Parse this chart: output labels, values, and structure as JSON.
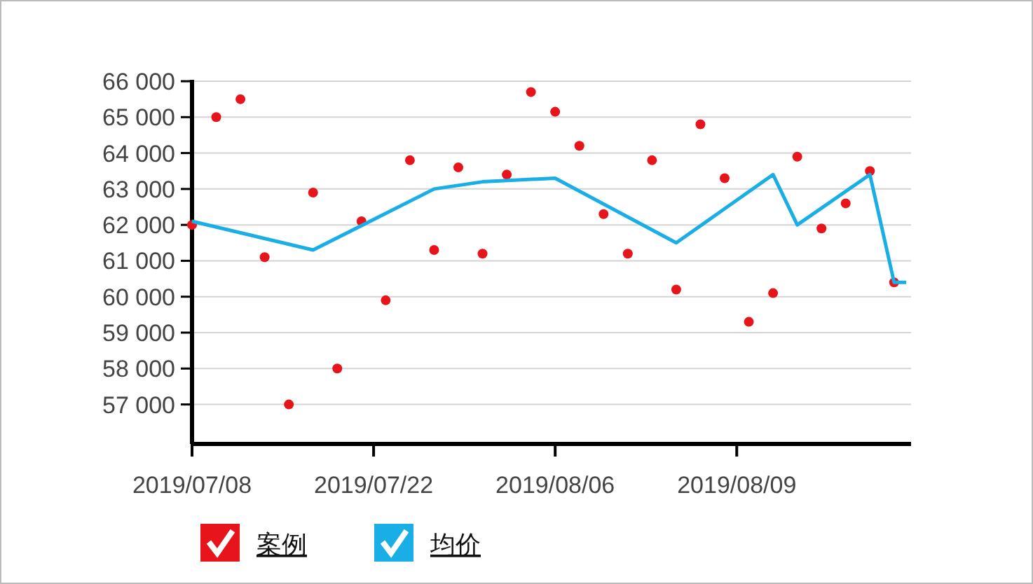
{
  "chart_data": {
    "type": "line",
    "categories": [
      "2019/07/08",
      null,
      null,
      null,
      null,
      null,
      null,
      null,
      null,
      null,
      null,
      null,
      null,
      null,
      null,
      "2019/07/22",
      null,
      null,
      null,
      null,
      null,
      null,
      null,
      null,
      null,
      null,
      null,
      null,
      null,
      null,
      "2019/08/06",
      null,
      null,
      null,
      null,
      null,
      null,
      null,
      null,
      null,
      null,
      null,
      null,
      null,
      null,
      "2019/08/09",
      null,
      null,
      null,
      null,
      null,
      null,
      null,
      null,
      null,
      null,
      null,
      null,
      null,
      null
    ],
    "series": [
      {
        "name": "案例",
        "type": "scatter",
        "marker": "circle",
        "color": "#e8141c",
        "values": [
          62000,
          null,
          65000,
          null,
          65500,
          null,
          61100,
          null,
          57000,
          null,
          62900,
          null,
          58000,
          null,
          62100,
          null,
          59900,
          null,
          63800,
          null,
          61300,
          null,
          63600,
          null,
          61200,
          null,
          63400,
          null,
          65700,
          null,
          65150,
          null,
          64200,
          null,
          62300,
          null,
          61200,
          null,
          63800,
          null,
          60200,
          null,
          64800,
          null,
          63300,
          null,
          59300,
          null,
          60100,
          null,
          63900,
          null,
          61900,
          null,
          62600,
          null,
          63500,
          null,
          60400,
          null
        ]
      },
      {
        "name": "均价",
        "marker": "none",
        "color": "#1aaee6",
        "values": [
          62100,
          null,
          null,
          null,
          null,
          null,
          null,
          null,
          null,
          null,
          61300,
          null,
          null,
          null,
          null,
          null,
          null,
          null,
          null,
          null,
          63000,
          null,
          null,
          null,
          63200,
          null,
          null,
          null,
          null,
          null,
          63300,
          null,
          null,
          null,
          null,
          null,
          null,
          null,
          null,
          null,
          61500,
          null,
          null,
          null,
          null,
          null,
          null,
          null,
          63400,
          null,
          62000,
          null,
          null,
          null,
          null,
          null,
          63400,
          null,
          60400,
          60400
        ]
      }
    ],
    "ylim": [
      55900,
      66000
    ],
    "yticks": [
      {
        "value": 57000,
        "label": "57 000"
      },
      {
        "value": 58000,
        "label": "58 000"
      },
      {
        "value": 59000,
        "label": "59 000"
      },
      {
        "value": 60000,
        "label": "60 000"
      },
      {
        "value": 61000,
        "label": "61 000"
      },
      {
        "value": 62000,
        "label": "62 000"
      },
      {
        "value": 63000,
        "label": "63 000"
      },
      {
        "value": 64000,
        "label": "64 000"
      },
      {
        "value": 65000,
        "label": "65 000"
      },
      {
        "value": 66000,
        "label": "66 000"
      }
    ],
    "grid": "y",
    "legend": "bottom left"
  }
}
